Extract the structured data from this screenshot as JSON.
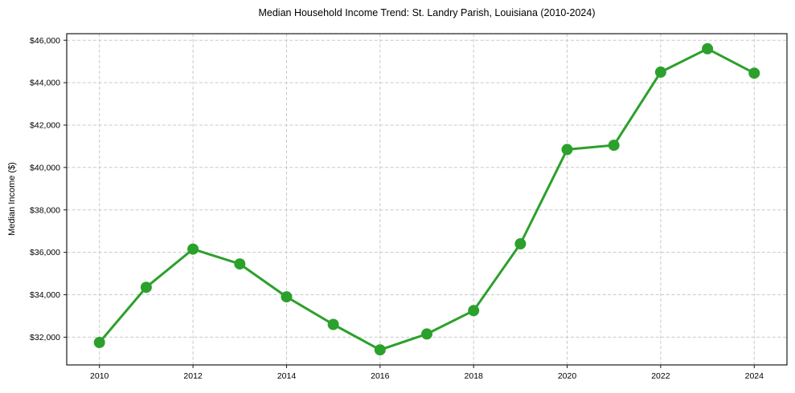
{
  "chart_data": {
    "type": "line",
    "title": "Median Household Income Trend: St. Landry Parish, Louisiana (2010-2024)",
    "xlabel": "",
    "ylabel": "Median Income ($)",
    "x": [
      2010,
      2011,
      2012,
      2013,
      2014,
      2015,
      2016,
      2017,
      2018,
      2019,
      2020,
      2021,
      2022,
      2023,
      2024
    ],
    "values": [
      31750,
      34350,
      36150,
      35450,
      33900,
      32600,
      31400,
      32150,
      33250,
      36400,
      40850,
      41050,
      44500,
      45600,
      44450
    ],
    "series_name": "Median household income",
    "line_color": "#2ca02c",
    "marker": "circle",
    "grid": true,
    "legend_position": "none",
    "xlim": [
      2009.3,
      2024.7
    ],
    "ylim": [
      30690,
      46310
    ],
    "x_ticks": [
      2010,
      2012,
      2014,
      2016,
      2018,
      2020,
      2022,
      2024
    ],
    "x_tick_labels": [
      "2010",
      "2012",
      "2014",
      "2016",
      "2018",
      "2020",
      "2022",
      "2024"
    ],
    "y_ticks": [
      32000,
      34000,
      36000,
      38000,
      40000,
      42000,
      44000,
      46000
    ],
    "y_tick_labels": [
      "$32,000",
      "$34,000",
      "$36,000",
      "$38,000",
      "$40,000",
      "$42,000",
      "$44,000",
      "$46,000"
    ]
  }
}
